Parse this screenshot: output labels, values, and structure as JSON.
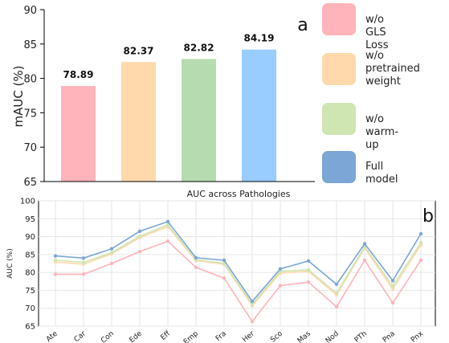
{
  "chart_data": [
    {
      "type": "bar",
      "panel_label": "a",
      "ylabel": "mAUC (%)",
      "ylim": [
        65,
        90
      ],
      "yticks": [
        "65",
        "70",
        "75",
        "80",
        "85",
        "90"
      ],
      "grid": false,
      "series": [
        {
          "name": "w/o GLS Loss",
          "value": 78.89,
          "label": "78.89",
          "color": "#ffb3ba"
        },
        {
          "name": "w/o\npretrained\nweight",
          "value": 82.37,
          "label": "82.37",
          "color": "#ffd9ab"
        },
        {
          "name": "w/o warm-up",
          "value": 82.82,
          "label": "82.82",
          "color": "#b6dbb0"
        },
        {
          "name": "Full model",
          "value": 84.19,
          "label": "84.19",
          "color": "#99ccff"
        }
      ],
      "legend_position": "right"
    },
    {
      "type": "line",
      "panel_label": "b",
      "title": "AUC across Pathologies",
      "ylabel": "AUC (%)",
      "ylim": [
        65,
        100
      ],
      "yticks": [
        "65",
        "70",
        "75",
        "80",
        "85",
        "90",
        "95",
        "100"
      ],
      "grid": true,
      "categories": [
        "Ate",
        "Car",
        "Con",
        "Ede",
        "Eff",
        "Emp",
        "Fra",
        "Her",
        "Sco",
        "Mas",
        "Nod",
        "PTh",
        "Pna",
        "Pnx"
      ],
      "series": [
        {
          "color": "#ffb3ba",
          "values": [
            79.5,
            79.5,
            82.5,
            85.8,
            88.7,
            81.4,
            78.4,
            66.3,
            76.3,
            77.3,
            70.4,
            83.4,
            71.5,
            83.4
          ]
        },
        {
          "color": "#ffd9ab",
          "values": [
            82.9,
            82.3,
            85.2,
            89.7,
            92.8,
            83.3,
            82.3,
            70.7,
            79.8,
            80.3,
            73.7,
            86.8,
            75.3,
            87.7
          ]
        },
        {
          "color": "#cfe5b2",
          "values": [
            83.4,
            82.8,
            85.5,
            90.1,
            93.3,
            83.6,
            82.5,
            71.2,
            80.3,
            80.7,
            74.2,
            87.2,
            76.2,
            88.3
          ]
        },
        {
          "color": "#7ba6d6",
          "values": [
            84.6,
            84.0,
            86.6,
            91.5,
            94.2,
            84.1,
            83.4,
            71.9,
            81.0,
            83.2,
            76.7,
            88.0,
            77.7,
            90.8
          ]
        }
      ]
    }
  ]
}
